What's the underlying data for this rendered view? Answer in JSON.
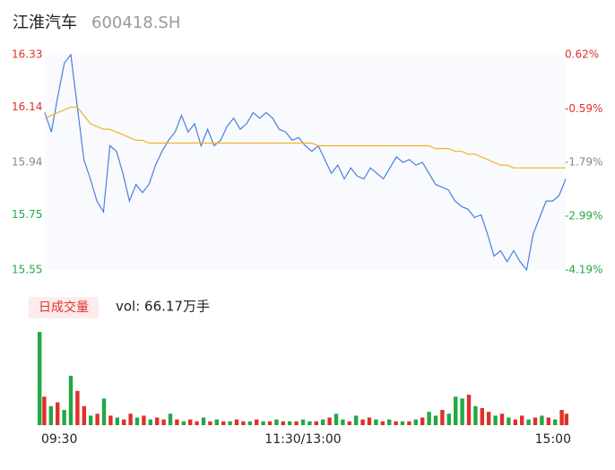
{
  "chart_data": [
    {
      "type": "line",
      "title": "江淮汽车",
      "subtitle": "600418.SH",
      "x": [
        0,
        3,
        6,
        9,
        12,
        15,
        18,
        21,
        24,
        27,
        30,
        33,
        36,
        39,
        42,
        45,
        48,
        51,
        54,
        57,
        60,
        63,
        66,
        69,
        72,
        75,
        78,
        81,
        84,
        87,
        90,
        93,
        96,
        99,
        102,
        105,
        108,
        111,
        114,
        117,
        120,
        123,
        126,
        129,
        132,
        135,
        138,
        141,
        144,
        147,
        150,
        153,
        156,
        159,
        162,
        165,
        168,
        171,
        174,
        177,
        180,
        183,
        186,
        189,
        192,
        195,
        198,
        201,
        204,
        207,
        210,
        213,
        216,
        219,
        222,
        225,
        228,
        231,
        234,
        237,
        240
      ],
      "series": [
        {
          "color": "#4a7ee0",
          "values": [
            16.12,
            16.05,
            16.18,
            16.3,
            16.33,
            16.14,
            15.95,
            15.88,
            15.8,
            15.76,
            16.0,
            15.98,
            15.9,
            15.8,
            15.86,
            15.83,
            15.86,
            15.93,
            15.98,
            16.02,
            16.05,
            16.11,
            16.05,
            16.08,
            16.0,
            16.06,
            16.0,
            16.02,
            16.07,
            16.1,
            16.06,
            16.08,
            16.12,
            16.1,
            16.12,
            16.1,
            16.06,
            16.05,
            16.02,
            16.03,
            16.0,
            15.98,
            16.0,
            15.95,
            15.9,
            15.93,
            15.88,
            15.92,
            15.89,
            15.88,
            15.92,
            15.9,
            15.88,
            15.92,
            15.96,
            15.94,
            15.95,
            15.93,
            15.94,
            15.9,
            15.86,
            15.85,
            15.84,
            15.8,
            15.78,
            15.77,
            15.74,
            15.75,
            15.68,
            15.6,
            15.62,
            15.58,
            15.62,
            15.58,
            15.55,
            15.68,
            15.74,
            15.8,
            15.8,
            15.82,
            15.88
          ]
        },
        {
          "color": "#f0b429",
          "values": [
            16.1,
            16.11,
            16.12,
            16.13,
            16.14,
            16.14,
            16.11,
            16.08,
            16.07,
            16.06,
            16.06,
            16.05,
            16.04,
            16.03,
            16.02,
            16.02,
            16.01,
            16.01,
            16.01,
            16.01,
            16.01,
            16.01,
            16.01,
            16.01,
            16.01,
            16.01,
            16.01,
            16.01,
            16.01,
            16.01,
            16.01,
            16.01,
            16.01,
            16.01,
            16.01,
            16.01,
            16.01,
            16.01,
            16.01,
            16.01,
            16.01,
            16.01,
            16.0,
            16.0,
            16.0,
            16.0,
            16.0,
            16.0,
            16.0,
            16.0,
            16.0,
            16.0,
            16.0,
            16.0,
            16.0,
            16.0,
            16.0,
            16.0,
            16.0,
            16.0,
            15.99,
            15.99,
            15.99,
            15.98,
            15.98,
            15.97,
            15.97,
            15.96,
            15.95,
            15.94,
            15.93,
            15.93,
            15.92,
            15.92,
            15.92,
            15.92,
            15.92,
            15.92,
            15.92,
            15.92,
            15.92
          ]
        }
      ],
      "xlim": [
        0,
        240
      ],
      "ylim": [
        15.55,
        16.33
      ],
      "yticks": [
        15.55,
        15.75,
        15.94,
        16.14,
        16.33
      ],
      "y2lim": [
        -4.19,
        0.62
      ],
      "y2ticks": [
        {
          "value": -4.19,
          "label": "-4.19%"
        },
        {
          "value": -2.99,
          "label": "-2.99%"
        },
        {
          "value": -1.79,
          "label": "-1.79%"
        },
        {
          "value": -0.59,
          "label": "-0.59%"
        },
        {
          "value": 0.62,
          "label": "0.62%"
        }
      ]
    },
    {
      "type": "bar",
      "title": "日成交量",
      "annotation": "vol: 66.17万手",
      "x": [
        0,
        3,
        6,
        9,
        12,
        15,
        18,
        21,
        24,
        27,
        30,
        33,
        36,
        39,
        42,
        45,
        48,
        51,
        54,
        57,
        60,
        63,
        66,
        69,
        72,
        75,
        78,
        81,
        84,
        87,
        90,
        93,
        96,
        99,
        102,
        105,
        108,
        111,
        114,
        117,
        120,
        123,
        126,
        129,
        132,
        135,
        138,
        141,
        144,
        147,
        150,
        153,
        156,
        159,
        162,
        165,
        168,
        171,
        174,
        177,
        180,
        183,
        186,
        189,
        192,
        195,
        198,
        201,
        204,
        207,
        210,
        213,
        216,
        219,
        222,
        225,
        228,
        231,
        234,
        237,
        240
      ],
      "values": [
        4.9,
        1.5,
        1.0,
        1.2,
        0.8,
        2.6,
        1.8,
        1.0,
        0.5,
        0.6,
        1.4,
        0.5,
        0.4,
        0.3,
        0.6,
        0.4,
        0.5,
        0.3,
        0.4,
        0.3,
        0.6,
        0.3,
        0.2,
        0.3,
        0.2,
        0.4,
        0.2,
        0.3,
        0.2,
        0.2,
        0.3,
        0.2,
        0.2,
        0.3,
        0.2,
        0.2,
        0.3,
        0.2,
        0.2,
        0.2,
        0.3,
        0.2,
        0.2,
        0.3,
        0.4,
        0.6,
        0.3,
        0.2,
        0.5,
        0.3,
        0.4,
        0.3,
        0.2,
        0.3,
        0.2,
        0.2,
        0.2,
        0.3,
        0.4,
        0.7,
        0.5,
        0.8,
        0.6,
        1.5,
        1.4,
        1.6,
        1.0,
        0.9,
        0.7,
        0.5,
        0.6,
        0.4,
        0.3,
        0.5,
        0.3,
        0.4,
        0.5,
        0.4,
        0.3,
        0.8,
        0.6
      ],
      "colors": [
        "#22a845",
        "#e0302c",
        "#22a845",
        "#e0302c",
        "#22a845",
        "#22a845",
        "#e0302c",
        "#e0302c",
        "#22a845",
        "#e0302c",
        "#22a845",
        "#e0302c",
        "#22a845",
        "#e0302c",
        "#e0302c",
        "#22a845",
        "#e0302c",
        "#22a845",
        "#e0302c",
        "#e0302c",
        "#22a845",
        "#e0302c",
        "#22a845",
        "#e0302c",
        "#e0302c",
        "#22a845",
        "#e0302c",
        "#22a845",
        "#e0302c",
        "#22a845",
        "#e0302c",
        "#e0302c",
        "#22a845",
        "#e0302c",
        "#22a845",
        "#e0302c",
        "#22a845",
        "#e0302c",
        "#22a845",
        "#e0302c",
        "#22a845",
        "#22a845",
        "#e0302c",
        "#22a845",
        "#e0302c",
        "#22a845",
        "#22a845",
        "#e0302c",
        "#22a845",
        "#e0302c",
        "#e0302c",
        "#22a845",
        "#e0302c",
        "#22a845",
        "#e0302c",
        "#22a845",
        "#e0302c",
        "#22a845",
        "#e0302c",
        "#22a845",
        "#22a845",
        "#e0302c",
        "#22a845",
        "#22a845",
        "#22a845",
        "#e0302c",
        "#22a845",
        "#e0302c",
        "#e0302c",
        "#22a845",
        "#e0302c",
        "#22a845",
        "#e0302c",
        "#e0302c",
        "#22a845",
        "#e0302c",
        "#22a845",
        "#e0302c",
        "#22a845",
        "#e0302c",
        "#e0302c"
      ],
      "ylim": [
        0,
        5
      ],
      "xlim": [
        0,
        240
      ],
      "xticks": [
        {
          "value": 0,
          "label": "09:30"
        },
        {
          "value": 120,
          "label": "11:30/13:00"
        },
        {
          "value": 240,
          "label": "15:00"
        }
      ]
    }
  ]
}
